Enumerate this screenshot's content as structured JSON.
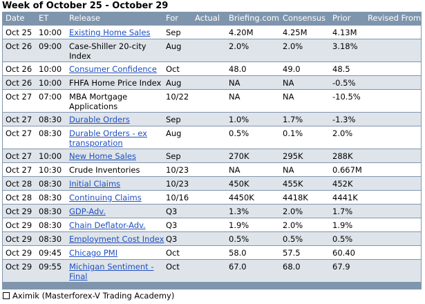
{
  "title": "Week of October 25 - October 29",
  "columns": {
    "date": "Date",
    "et": "ET",
    "release": "Release",
    "for": "For",
    "actual": "Actual",
    "briefing": "Briefing.com",
    "consensus": "Consensus",
    "prior": "Prior",
    "revised": "Revised From"
  },
  "rows": [
    {
      "date": "Oct 25",
      "et": "10:00",
      "release": "Existing Home Sales",
      "link": true,
      "for": "Sep",
      "actual": "",
      "briefing": "4.20M",
      "consensus": "4.25M",
      "prior": "4.13M",
      "revised": ""
    },
    {
      "date": "Oct 26",
      "et": "09:00",
      "release": "Case-Shiller 20-city Index",
      "link": false,
      "for": "Aug",
      "actual": "",
      "briefing": "2.0%",
      "consensus": "2.0%",
      "prior": "3.18%",
      "revised": ""
    },
    {
      "date": "Oct 26",
      "et": "10:00",
      "release": "Consumer Confidence",
      "link": true,
      "for": "Oct",
      "actual": "",
      "briefing": "48.0",
      "consensus": "49.0",
      "prior": "48.5",
      "revised": ""
    },
    {
      "date": "Oct 26",
      "et": "10:00",
      "release": "FHFA Home Price Index",
      "link": false,
      "for": "Aug",
      "actual": "",
      "briefing": "NA",
      "consensus": "NA",
      "prior": "-0.5%",
      "revised": ""
    },
    {
      "date": "Oct 27",
      "et": "07:00",
      "release": "MBA Mortgage Applications",
      "link": false,
      "for": "10/22",
      "actual": "",
      "briefing": "NA",
      "consensus": "NA",
      "prior": "-10.5%",
      "revised": ""
    },
    {
      "date": "Oct 27",
      "et": "08:30",
      "release": "Durable Orders",
      "link": true,
      "for": "Sep",
      "actual": "",
      "briefing": "1.0%",
      "consensus": "1.7%",
      "prior": "-1.3%",
      "revised": ""
    },
    {
      "date": "Oct 27",
      "et": "08:30",
      "release": "Durable Orders - ex transporation",
      "link": true,
      "for": "Aug",
      "actual": "",
      "briefing": "0.5%",
      "consensus": "0.1%",
      "prior": "2.0%",
      "revised": ""
    },
    {
      "date": "Oct 27",
      "et": "10:00",
      "release": "New Home Sales",
      "link": true,
      "for": "Sep",
      "actual": "",
      "briefing": "270K",
      "consensus": "295K",
      "prior": "288K",
      "revised": ""
    },
    {
      "date": "Oct 27",
      "et": "10:30",
      "release": "Crude Inventories",
      "link": false,
      "for": "10/23",
      "actual": "",
      "briefing": "NA",
      "consensus": "NA",
      "prior": "0.667M",
      "revised": ""
    },
    {
      "date": "Oct 28",
      "et": "08:30",
      "release": "Initial Claims",
      "link": true,
      "for": "10/23",
      "actual": "",
      "briefing": "450K",
      "consensus": "455K",
      "prior": "452K",
      "revised": ""
    },
    {
      "date": "Oct 28",
      "et": "08:30",
      "release": "Continuing Claims",
      "link": true,
      "for": "10/16",
      "actual": "",
      "briefing": "4450K",
      "consensus": "4418K",
      "prior": "4441K",
      "revised": ""
    },
    {
      "date": "Oct 29",
      "et": "08:30",
      "release": "GDP-Adv.",
      "link": true,
      "for": "Q3",
      "actual": "",
      "briefing": "1.3%",
      "consensus": "2.0%",
      "prior": "1.7%",
      "revised": ""
    },
    {
      "date": "Oct 29",
      "et": "08:30",
      "release": "Chain Deflator-Adv.",
      "link": true,
      "for": "Q3",
      "actual": "",
      "briefing": "1.9%",
      "consensus": "2.0%",
      "prior": "1.9%",
      "revised": ""
    },
    {
      "date": "Oct 29",
      "et": "08:30",
      "release": "Employment Cost Index",
      "link": true,
      "for": "Q3",
      "actual": "",
      "briefing": "0.5%",
      "consensus": "0.5%",
      "prior": "0.5%",
      "revised": ""
    },
    {
      "date": "Oct 29",
      "et": "09:45",
      "release": "Chicago PMI",
      "link": true,
      "for": "Oct",
      "actual": "",
      "briefing": "58.0",
      "consensus": "57.5",
      "prior": "60.40",
      "revised": ""
    },
    {
      "date": "Oct 29",
      "et": "09:55",
      "release": "Michigan Sentiment - Final",
      "link": true,
      "for": "Oct",
      "actual": "",
      "briefing": "67.0",
      "consensus": "68.0",
      "prior": "67.9",
      "revised": ""
    }
  ],
  "footer": "Aximik (Masterforex-V Trading Academy)"
}
